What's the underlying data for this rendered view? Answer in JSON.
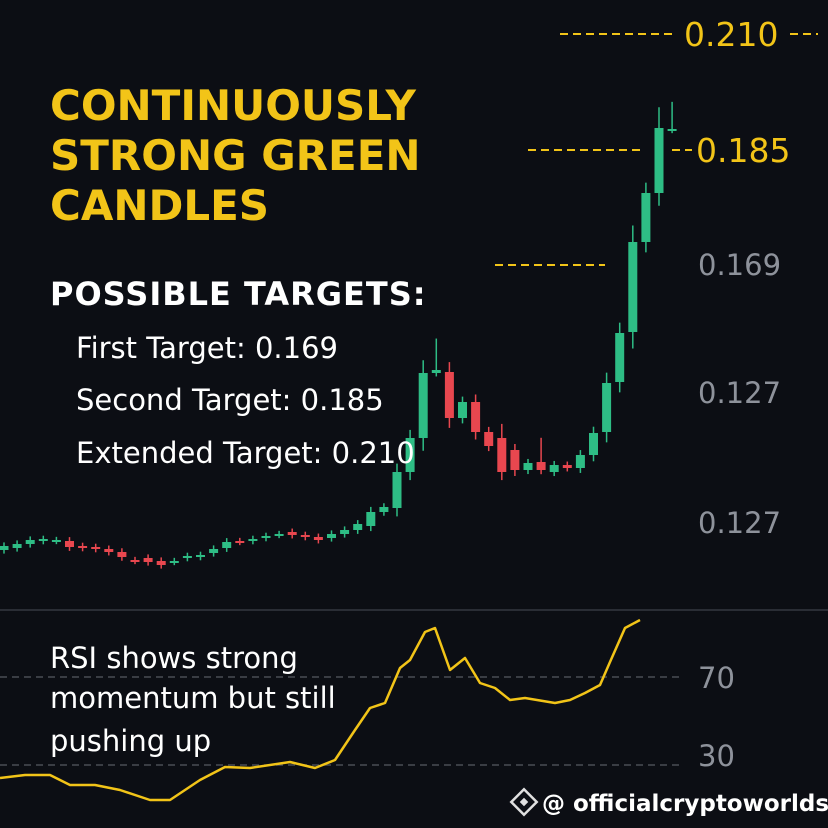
{
  "headline": [
    "CONTINUOUSLY",
    "STRONG GREEN",
    "CANDLES"
  ],
  "targets": {
    "title": "POSSIBLE TARGETS:",
    "items": [
      "First Target: 0.169",
      "Second Target: 0.185",
      "Extended Target: 0.210"
    ]
  },
  "price_labels": [
    "0.210",
    "0.185",
    "0.169",
    "0.127",
    "0.127"
  ],
  "rsi": {
    "note": [
      "RSI shows strong",
      "momentum but still",
      "pushing up"
    ],
    "levels": [
      "70",
      "30"
    ]
  },
  "watermark": "@ officialcryptoworlds..."
}
